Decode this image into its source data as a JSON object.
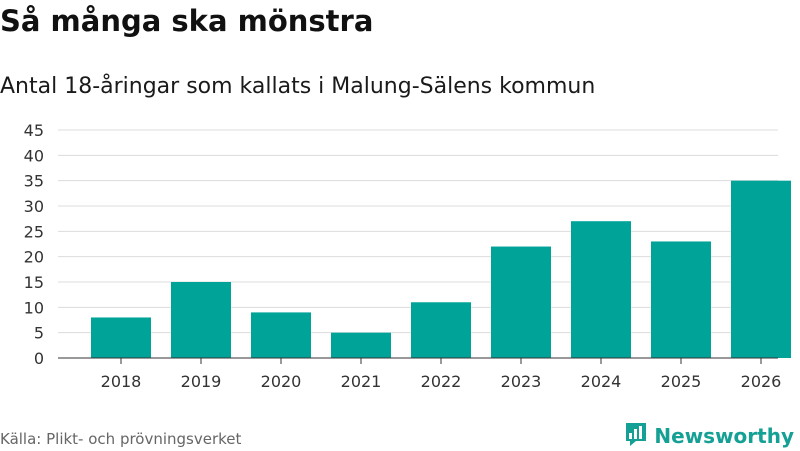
{
  "header": {
    "title": "Så många ska mönstra",
    "subtitle": "Antal 18-åringar som kallats i Malung-Sälens kommun"
  },
  "footer": {
    "source": "Källa: Plikt- och prövningsverket",
    "brand": "Newsworthy",
    "brand_icon": "bar-chart-logo-icon"
  },
  "colors": {
    "bar": "#00a398",
    "grid": "#dcdcdc",
    "axis": "#333333",
    "brand": "#14a094"
  },
  "chart_data": {
    "type": "bar",
    "title": "Så många ska mönstra",
    "subtitle": "Antal 18-åringar som kallats i Malung-Sälens kommun",
    "xlabel": "",
    "ylabel": "",
    "categories": [
      "2018",
      "2019",
      "2020",
      "2021",
      "2022",
      "2023",
      "2024",
      "2025",
      "2026"
    ],
    "values": [
      8,
      15,
      9,
      5,
      11,
      22,
      27,
      23,
      35
    ],
    "ylim": [
      0,
      45
    ],
    "yticks": [
      0,
      5,
      10,
      15,
      20,
      25,
      30,
      35,
      40,
      45
    ],
    "grid": true,
    "legend": "none"
  }
}
